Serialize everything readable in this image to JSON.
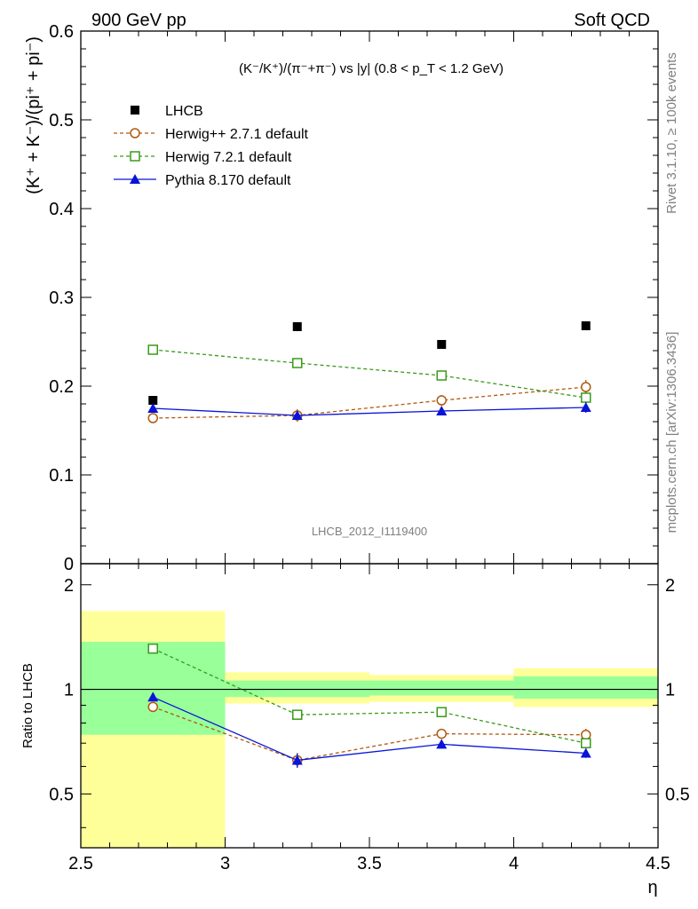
{
  "header": {
    "left": "900 GeV pp",
    "right": "Soft QCD"
  },
  "side_text": {
    "upper": "Rivet 3.1.10, ≥ 100k events",
    "lower": "mcplots.cern.ch [arXiv:1306.3436]"
  },
  "chart_data": [
    {
      "type": "scatter",
      "panel": "main",
      "title": "(K⁻/K⁺)/(π⁻+π⁻) vs |y| (0.8 < p_T < 1.2 GeV)",
      "ylabel": "(K⁺ + K⁻)/(pi⁺ + pi⁻)",
      "xlabel": "",
      "watermark": "LHCB_2012_I1119400",
      "xlim": [
        2.5,
        4.5
      ],
      "ylim": [
        0,
        0.6
      ],
      "yticks": [
        "0.1",
        "0.2",
        "0.3",
        "0.4",
        "0.5",
        "0.6"
      ],
      "legend_position": "top-left",
      "x": [
        2.75,
        3.25,
        3.75,
        4.25
      ],
      "series": [
        {
          "name": "LHCB",
          "color": "#000000",
          "marker": "filled-square",
          "values": [
            0.184,
            0.267,
            0.247,
            0.268
          ]
        },
        {
          "name": "Herwig++ 2.7.1 default",
          "color": "#b05a10",
          "marker": "open-circle",
          "line": "dashed",
          "values": [
            0.164,
            0.167,
            0.184,
            0.199
          ],
          "errors": [
            0.004,
            0.007,
            0.006,
            0.008
          ]
        },
        {
          "name": "Herwig 7.2.1 default",
          "color": "#3a9a1a",
          "marker": "open-square",
          "line": "dashed",
          "values": [
            0.241,
            0.226,
            0.212,
            0.187
          ],
          "errors": [
            0.004,
            0.004,
            0.005,
            0.006
          ]
        },
        {
          "name": "Pythia 8.170 default",
          "color": "#0a14d8",
          "marker": "filled-triangle",
          "line": "solid",
          "values": [
            0.175,
            0.167,
            0.172,
            0.176
          ],
          "errors": [
            0.004,
            0.004,
            0.005,
            0.006
          ]
        }
      ]
    },
    {
      "type": "scatter",
      "panel": "ratio",
      "ylabel": "Ratio to LHCB",
      "xlabel": "η",
      "xlim": [
        2.5,
        4.5
      ],
      "ylim": [
        0.35,
        2.3
      ],
      "log_y": true,
      "yticks": [
        "0.5",
        "1",
        "2"
      ],
      "xticks": [
        "2.5",
        "3",
        "3.5",
        "4",
        "4.5"
      ],
      "bands": [
        {
          "x": [
            2.5,
            3.0
          ],
          "inner": [
            0.74,
            1.37
          ],
          "outer": [
            0.35,
            1.68
          ]
        },
        {
          "x": [
            3.0,
            3.5
          ],
          "inner": [
            0.95,
            1.06
          ],
          "outer": [
            0.91,
            1.12
          ]
        },
        {
          "x": [
            3.5,
            4.0
          ],
          "inner": [
            0.96,
            1.06
          ],
          "outer": [
            0.92,
            1.1
          ]
        },
        {
          "x": [
            4.0,
            4.5
          ],
          "inner": [
            0.94,
            1.09
          ],
          "outer": [
            0.89,
            1.15
          ]
        }
      ],
      "band_colors": {
        "inner": "#99ff99",
        "outer": "#ffff99"
      },
      "x": [
        2.75,
        3.25,
        3.75,
        4.25
      ],
      "series": [
        {
          "name": "Herwig++ 2.7.1 default",
          "color": "#b05a10",
          "marker": "open-circle",
          "line": "dashed",
          "values": [
            0.89,
            0.625,
            0.745,
            0.74
          ],
          "errors": [
            0.02,
            0.03,
            0.02,
            0.03
          ]
        },
        {
          "name": "Herwig 7.2.1 default",
          "color": "#3a9a1a",
          "marker": "open-square",
          "line": "dashed",
          "values": [
            1.31,
            0.845,
            0.86,
            0.7
          ],
          "errors": [
            0.02,
            0.015,
            0.02,
            0.02
          ]
        },
        {
          "name": "Pythia 8.170 default",
          "color": "#0a14d8",
          "marker": "filled-triangle",
          "line": "solid",
          "values": [
            0.95,
            0.625,
            0.695,
            0.655
          ],
          "errors": [
            0.02,
            0.03,
            0.02,
            0.02
          ]
        }
      ]
    }
  ]
}
